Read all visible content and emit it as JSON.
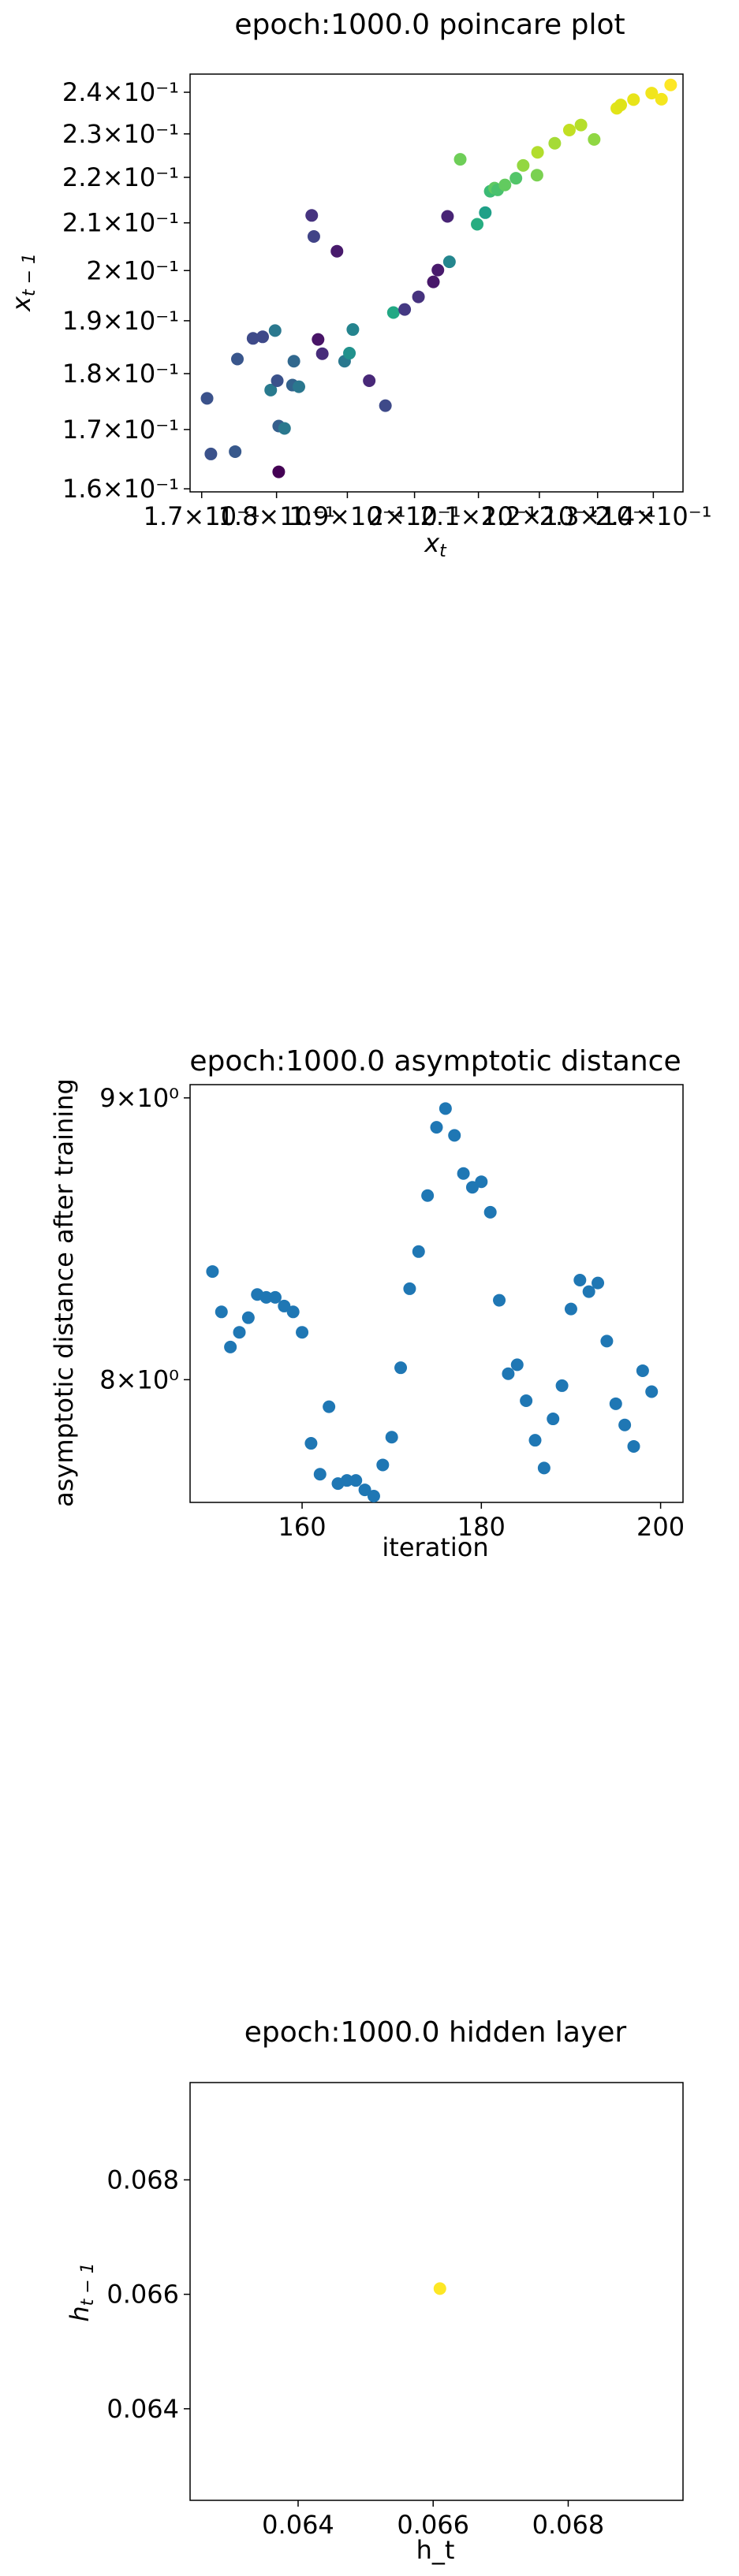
{
  "chart_data": [
    {
      "type": "scatter",
      "title": "epoch:1000.0 poincare plot",
      "xlabel": "x_t",
      "ylabel": "x_{t-1}",
      "xscale": "log",
      "yscale": "log",
      "xlim": [
        0.1685,
        0.2455
      ],
      "ylim": [
        0.1595,
        0.2445
      ],
      "xticks": [
        0.17,
        0.18,
        0.19,
        0.2,
        0.21,
        0.22,
        0.23,
        0.24
      ],
      "xtick_labels": [
        "1.7×10⁻¹",
        "1.8×10⁻¹",
        "1.9×10⁻¹",
        "2×10⁻¹",
        "2.1×10⁻¹",
        "2.2×10⁻¹",
        "2.3×10⁻¹",
        "2.4×10⁻¹"
      ],
      "yticks": [
        0.16,
        0.17,
        0.18,
        0.19,
        0.2,
        0.21,
        0.22,
        0.23,
        0.24
      ],
      "ytick_labels": [
        "1.6×10⁻¹",
        "1.7×10⁻¹",
        "1.8×10⁻¹",
        "1.9×10⁻¹",
        "2×10⁻¹",
        "2.1×10⁻¹",
        "2.2×10⁻¹",
        "2.3×10⁻¹",
        "2.4×10⁻¹"
      ],
      "colormap": "viridis",
      "x": [
        0.1707,
        0.1712,
        0.1744,
        0.1747,
        0.1768,
        0.1781,
        0.1792,
        0.1798,
        0.1801,
        0.1803,
        0.1803,
        0.1811,
        0.1822,
        0.1824,
        0.1831,
        0.1849,
        0.1852,
        0.1858,
        0.1864,
        0.1885,
        0.1896,
        0.1903,
        0.1908,
        0.1932,
        0.1956,
        0.1968,
        0.1985,
        0.2006,
        0.2029,
        0.2036,
        0.2051,
        0.2054,
        0.2071,
        0.2098,
        0.2111,
        0.2119,
        0.2126,
        0.2131,
        0.2143,
        0.2161,
        0.2173,
        0.2196,
        0.2197,
        0.2226,
        0.2251,
        0.2271,
        0.2294,
        0.2334,
        0.2341,
        0.2364,
        0.2397,
        0.2415,
        0.2432
      ],
      "y": [
        0.1755,
        0.1658,
        0.1662,
        0.1827,
        0.1866,
        0.1869,
        0.177,
        0.1881,
        0.1787,
        0.1706,
        0.1628,
        0.1702,
        0.1779,
        0.1823,
        0.1776,
        0.2116,
        0.2071,
        0.1864,
        0.1837,
        0.204,
        0.1823,
        0.1838,
        0.1883,
        0.1787,
        0.1742,
        0.1916,
        0.1922,
        0.1947,
        0.1977,
        0.2001,
        0.2114,
        0.2018,
        0.2241,
        0.2097,
        0.2122,
        0.2169,
        0.2176,
        0.2172,
        0.2183,
        0.2198,
        0.2227,
        0.2205,
        0.2257,
        0.2278,
        0.2309,
        0.2321,
        0.2287,
        0.2361,
        0.2369,
        0.2382,
        0.2398,
        0.2383,
        0.2418
      ],
      "colors": [
        "#3b528b",
        "#3b528b",
        "#38598c",
        "#39568c",
        "#3e4a89",
        "#3e4989",
        "#297a8e",
        "#2a788e",
        "#3b528b",
        "#355f8d",
        "#440154",
        "#2a788e",
        "#33638d",
        "#31688e",
        "#2a778e",
        "#46337f",
        "#414487",
        "#481467",
        "#472c7a",
        "#481a6c",
        "#2a788e",
        "#21918c",
        "#25848e",
        "#482878",
        "#3e4a89",
        "#22a884",
        "#443983",
        "#46327e",
        "#48186a",
        "#481a6c",
        "#482475",
        "#24868e",
        "#6ece58",
        "#27ad81",
        "#1fa088",
        "#3cbb75",
        "#5ec962",
        "#4ac16d",
        "#62cb5f",
        "#52c569",
        "#93d741",
        "#7ad151",
        "#b2dd2d",
        "#a5db36",
        "#c2df23",
        "#b5de2b",
        "#90d743",
        "#e2e418",
        "#dfe318",
        "#e8e419",
        "#f1e51d",
        "#f4e61e",
        "#fde725"
      ]
    },
    {
      "type": "scatter",
      "title": "epoch:1000.0 asymptotic distance",
      "xlabel": "iteration",
      "ylabel": "asymptotic distance after training",
      "yscale": "log",
      "xlim": [
        147.5,
        202.5
      ],
      "ylim": [
        7.6,
        9.05
      ],
      "xticks": [
        160,
        180,
        200
      ],
      "xtick_labels": [
        "160",
        "180",
        "200"
      ],
      "yticks": [
        8,
        9
      ],
      "ytick_labels": [
        "8×10⁰",
        "9×10⁰"
      ],
      "color": "#1f77b4",
      "x": [
        150,
        151,
        152,
        153,
        154,
        155,
        156,
        157,
        158,
        159,
        160,
        161,
        162,
        163,
        164,
        165,
        166,
        167,
        168,
        169,
        170,
        171,
        172,
        173,
        174,
        175,
        176,
        177,
        178,
        179,
        180,
        181,
        182,
        183,
        184,
        185,
        186,
        187,
        188,
        189,
        190,
        191,
        192,
        193,
        194,
        195,
        196,
        197,
        198,
        199
      ],
      "y": [
        8.37,
        8.23,
        8.11,
        8.16,
        8.21,
        8.29,
        8.28,
        8.28,
        8.25,
        8.23,
        8.16,
        7.79,
        7.69,
        7.91,
        7.66,
        7.67,
        7.67,
        7.64,
        7.62,
        7.72,
        7.81,
        8.04,
        8.31,
        8.44,
        8.64,
        8.89,
        8.96,
        8.86,
        8.72,
        8.67,
        8.69,
        8.58,
        8.27,
        8.02,
        8.05,
        7.93,
        7.8,
        7.71,
        7.87,
        7.98,
        8.24,
        8.34,
        8.3,
        8.33,
        8.13,
        7.92,
        7.85,
        7.78,
        8.03,
        7.96
      ]
    },
    {
      "type": "scatter",
      "title": "epoch:1000.0 hidden layer",
      "xlabel": "h_t",
      "ylabel": "h_{t-1}",
      "xlim": [
        0.0624,
        0.0697
      ],
      "ylim": [
        0.0624,
        0.0697
      ],
      "xticks": [
        0.064,
        0.066,
        0.068
      ],
      "xtick_labels": [
        "0.064",
        "0.066",
        "0.068"
      ],
      "yticks": [
        0.064,
        0.066,
        0.068
      ],
      "ytick_labels": [
        "0.064",
        "0.066",
        "0.068"
      ],
      "color": "#fde725",
      "x": [
        0.0661
      ],
      "y": [
        0.0661
      ]
    }
  ]
}
